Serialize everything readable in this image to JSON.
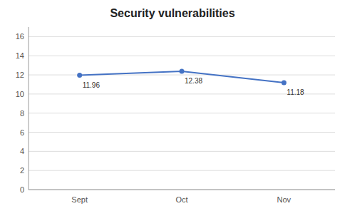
{
  "chart_data": {
    "type": "line",
    "title": "Security vulnerabilities",
    "categories": [
      "Sept",
      "Oct",
      "Nov"
    ],
    "values": [
      11.96,
      12.38,
      11.18
    ],
    "color": "#4472C4",
    "marker": "circle",
    "ylim": [
      0,
      17
    ],
    "yticks": [
      0,
      2,
      4,
      6,
      8,
      10,
      12,
      14,
      16
    ],
    "grid": true,
    "data_labels": true
  }
}
